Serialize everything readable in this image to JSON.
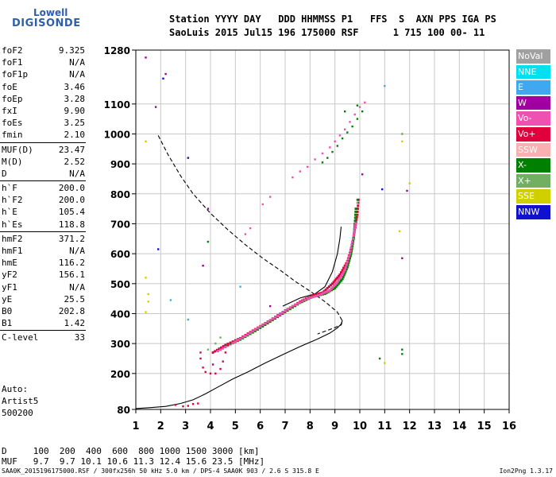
{
  "logo": {
    "line1": "Lowell",
    "line2": "DIGISONDE"
  },
  "header": {
    "line1": "Station YYYY DAY   DDD HHMMSS P1   FFS  S  AXN PPS IGA PS",
    "line2": "SaoLuis 2015 Jul15 196 175000 RSF      1 715 100 00- 11"
  },
  "params": [
    [
      {
        "k": "foF2",
        "v": "9.325"
      },
      {
        "k": "foF1",
        "v": "N/A"
      },
      {
        "k": "foF1p",
        "v": "N/A"
      },
      {
        "k": "foE",
        "v": "3.46"
      },
      {
        "k": "foEp",
        "v": "3.28"
      },
      {
        "k": "fxI",
        "v": "9.90"
      },
      {
        "k": "foEs",
        "v": "3.25"
      },
      {
        "k": "fmin",
        "v": "2.10"
      }
    ],
    [
      {
        "k": "MUF(D)",
        "v": "23.47"
      },
      {
        "k": "M(D)",
        "v": "2.52"
      },
      {
        "k": "D",
        "v": "N/A"
      }
    ],
    [
      {
        "k": "h`F",
        "v": "200.0"
      },
      {
        "k": "h`F2",
        "v": "200.0"
      },
      {
        "k": "h`E",
        "v": "105.4"
      },
      {
        "k": "h`Es",
        "v": "118.8"
      }
    ],
    [
      {
        "k": "hmF2",
        "v": "371.2"
      },
      {
        "k": "hmF1",
        "v": "N/A"
      },
      {
        "k": "hmE",
        "v": "116.2"
      },
      {
        "k": "yF2",
        "v": "156.1"
      },
      {
        "k": "yF1",
        "v": "N/A"
      },
      {
        "k": "yE",
        "v": "25.5"
      },
      {
        "k": "B0",
        "v": "202.8"
      },
      {
        "k": "B1",
        "v": "1.42"
      }
    ],
    [
      {
        "k": "C-level",
        "v": "33"
      }
    ]
  ],
  "auto": {
    "line1": "Auto:",
    "line2": "Artist5",
    "line3": "500200"
  },
  "legend": [
    {
      "label": "NoVal",
      "color": "#a0a0a0"
    },
    {
      "label": "NNE",
      "color": "#00e0f0"
    },
    {
      "label": "E",
      "color": "#40a8f0"
    },
    {
      "label": "W",
      "color": "#a000a0"
    },
    {
      "label": "Vo-",
      "color": "#f050b0"
    },
    {
      "label": "Vo+",
      "color": "#e0003c"
    },
    {
      "label": "SSW",
      "color": "#f8b0b0"
    },
    {
      "label": "X-",
      "color": "#008000"
    },
    {
      "label": "X+",
      "color": "#70b060"
    },
    {
      "label": "SSE",
      "color": "#d0d000"
    },
    {
      "label": "NNW",
      "color": "#1010d0"
    }
  ],
  "bottom": {
    "line1": "D     100  200  400  600  800 1000 1500 3000 [km]",
    "line2": "MUF   9.7  9.7 10.1 10.6 11.3 12.4 15.6 23.5 [MHz]"
  },
  "footer": {
    "left": "SAA0K_2015196175000.RSF / 300fx256h 50 kHz 5.0 km / DPS-4 SAA0K 903 / 2.6 S 315.8 E",
    "right": "Ion2Png 1.3.17"
  },
  "chart_data": {
    "type": "scatter",
    "xlabel": "",
    "ylabel": "",
    "xlim": [
      1,
      16
    ],
    "ylim": [
      80,
      1280
    ],
    "x_ticks": [
      "1",
      "2",
      "3",
      "4",
      "5",
      "6",
      "7",
      "8",
      "9",
      "10",
      "11",
      "12",
      "13",
      "14",
      "15",
      "16"
    ],
    "y_ticks": [
      "80",
      "200",
      "300",
      "400",
      "500",
      "600",
      "700",
      "800",
      "900",
      "1000",
      "1100",
      "1280"
    ],
    "grid": true,
    "series": [
      {
        "style": "dashed",
        "color": "#000000",
        "points": [
          [
            1.9,
            995
          ],
          [
            2.3,
            930
          ],
          [
            2.8,
            860
          ],
          [
            3.3,
            800
          ],
          [
            4.0,
            735
          ],
          [
            4.7,
            680
          ],
          [
            5.4,
            630
          ],
          [
            6.1,
            585
          ],
          [
            6.8,
            545
          ],
          [
            7.4,
            508
          ],
          [
            8.0,
            475
          ],
          [
            8.6,
            440
          ],
          [
            9.1,
            405
          ],
          [
            9.3,
            375
          ],
          [
            9.25,
            362
          ],
          [
            8.9,
            350
          ],
          [
            8.3,
            332
          ]
        ]
      },
      {
        "style": "solid",
        "color": "#000000",
        "points": [
          [
            1.0,
            83
          ],
          [
            1.6,
            86
          ],
          [
            2.2,
            90
          ],
          [
            2.8,
            100
          ],
          [
            3.3,
            112
          ],
          [
            3.8,
            132
          ],
          [
            4.3,
            155
          ],
          [
            4.9,
            182
          ],
          [
            5.5,
            205
          ],
          [
            6.2,
            235
          ],
          [
            6.9,
            263
          ],
          [
            7.6,
            290
          ],
          [
            8.3,
            315
          ],
          [
            8.8,
            335
          ],
          [
            9.1,
            352
          ],
          [
            9.25,
            365
          ],
          [
            9.3,
            378
          ]
        ]
      },
      {
        "style": "solid",
        "color": "#000000",
        "points": [
          [
            6.9,
            425
          ],
          [
            7.6,
            452
          ],
          [
            8.2,
            466
          ],
          [
            8.6,
            490
          ],
          [
            8.9,
            540
          ],
          [
            9.1,
            600
          ],
          [
            9.2,
            650
          ],
          [
            9.25,
            690
          ]
        ]
      },
      {
        "style": "trace",
        "color": "#e0003c",
        "points": [
          [
            4.1,
            270
          ],
          [
            4.6,
            295
          ],
          [
            5.2,
            318
          ],
          [
            5.8,
            348
          ],
          [
            6.4,
            378
          ],
          [
            7.0,
            410
          ],
          [
            7.6,
            440
          ],
          [
            8.1,
            460
          ],
          [
            8.5,
            470
          ],
          [
            8.9,
            500
          ],
          [
            9.2,
            530
          ],
          [
            9.5,
            575
          ],
          [
            9.7,
            630
          ],
          [
            9.8,
            680
          ],
          [
            9.9,
            730
          ],
          [
            9.95,
            790
          ]
        ]
      },
      {
        "style": "trace",
        "color": "#008000",
        "points": [
          [
            4.6,
            290
          ],
          [
            5.2,
            313
          ],
          [
            5.8,
            342
          ],
          [
            6.4,
            373
          ],
          [
            7.0,
            405
          ],
          [
            7.6,
            436
          ],
          [
            8.1,
            456
          ],
          [
            8.6,
            466
          ],
          [
            9.0,
            485
          ],
          [
            9.3,
            515
          ],
          [
            9.5,
            555
          ],
          [
            9.65,
            600
          ],
          [
            9.75,
            650
          ],
          [
            9.8,
            700
          ],
          [
            9.85,
            760
          ]
        ]
      },
      {
        "style": "trace",
        "color": "#f050b0",
        "points": [
          [
            4.3,
            275
          ],
          [
            4.9,
            302
          ],
          [
            5.5,
            330
          ],
          [
            6.1,
            362
          ],
          [
            6.7,
            392
          ],
          [
            7.3,
            425
          ],
          [
            7.9,
            450
          ],
          [
            8.4,
            463
          ],
          [
            8.8,
            478
          ],
          [
            9.1,
            505
          ],
          [
            9.4,
            545
          ],
          [
            9.6,
            600
          ],
          [
            9.75,
            660
          ],
          [
            9.85,
            710
          ]
        ]
      },
      {
        "style": "dots",
        "color": "#f050b0",
        "points": [
          [
            7.3,
            855
          ],
          [
            7.6,
            875
          ],
          [
            7.9,
            890
          ],
          [
            8.2,
            915
          ],
          [
            8.5,
            935
          ],
          [
            8.8,
            955
          ],
          [
            9.0,
            975
          ],
          [
            9.2,
            995
          ],
          [
            9.4,
            1015
          ],
          [
            9.6,
            1040
          ],
          [
            9.8,
            1065
          ],
          [
            10.0,
            1090
          ],
          [
            10.2,
            1105
          ],
          [
            6.1,
            765
          ],
          [
            6.4,
            790
          ],
          [
            5.4,
            665
          ],
          [
            5.6,
            685
          ]
        ]
      },
      {
        "style": "dots",
        "color": "#008000",
        "points": [
          [
            8.5,
            905
          ],
          [
            8.7,
            920
          ],
          [
            8.9,
            940
          ],
          [
            9.1,
            960
          ],
          [
            9.3,
            985
          ],
          [
            9.5,
            1005
          ],
          [
            9.7,
            1025
          ],
          [
            9.9,
            1050
          ],
          [
            10.1,
            1075
          ],
          [
            9.9,
            1095
          ],
          [
            9.4,
            1075
          ]
        ]
      },
      {
        "style": "dots",
        "color": "#e0003c",
        "points": [
          [
            3.6,
            270
          ],
          [
            3.6,
            250
          ],
          [
            3.7,
            220
          ],
          [
            3.8,
            205
          ],
          [
            4.0,
            200
          ],
          [
            4.2,
            200
          ],
          [
            4.4,
            215
          ],
          [
            4.5,
            240
          ],
          [
            4.6,
            270
          ],
          [
            4.7,
            295
          ],
          [
            2.6,
            95
          ],
          [
            2.9,
            90
          ],
          [
            3.1,
            92
          ],
          [
            3.3,
            98
          ],
          [
            3.5,
            100
          ]
        ]
      },
      {
        "style": "dots",
        "color": "#a000a0",
        "points": [
          [
            1.4,
            1255
          ],
          [
            2.2,
            1200
          ],
          [
            1.8,
            1090
          ],
          [
            3.9,
            750
          ],
          [
            4.1,
            230
          ],
          [
            6.4,
            425
          ],
          [
            3.7,
            560
          ],
          [
            11.7,
            585
          ],
          [
            11.9,
            810
          ],
          [
            10.1,
            865
          ]
        ]
      },
      {
        "style": "dots",
        "color": "#008000",
        "points": [
          [
            11.7,
            280
          ],
          [
            11.7,
            265
          ],
          [
            4.8,
            300
          ],
          [
            10.8,
            250
          ],
          [
            9.9,
            780
          ],
          [
            3.9,
            640
          ]
        ]
      },
      {
        "style": "dots",
        "color": "#d0d000",
        "points": [
          [
            1.4,
            520
          ],
          [
            1.5,
            465
          ],
          [
            1.5,
            440
          ],
          [
            1.4,
            405
          ],
          [
            11.7,
            1000
          ],
          [
            11.7,
            975
          ],
          [
            12.0,
            835
          ],
          [
            11.6,
            675
          ],
          [
            11.0,
            235
          ],
          [
            1.4,
            975
          ]
        ]
      },
      {
        "style": "dots",
        "color": "#40a8f0",
        "points": [
          [
            2.4,
            445
          ],
          [
            3.1,
            380
          ],
          [
            5.2,
            490
          ],
          [
            11.0,
            1160
          ]
        ]
      },
      {
        "style": "dots",
        "color": "#1010d0",
        "points": [
          [
            2.1,
            1185
          ],
          [
            1.9,
            615
          ],
          [
            3.1,
            920
          ],
          [
            10.9,
            815
          ]
        ]
      },
      {
        "style": "dots",
        "color": "#70b060",
        "points": [
          [
            3.9,
            280
          ],
          [
            4.2,
            300
          ],
          [
            4.4,
            320
          ],
          [
            9.9,
            770
          ],
          [
            11.7,
            1000
          ]
        ]
      }
    ]
  }
}
